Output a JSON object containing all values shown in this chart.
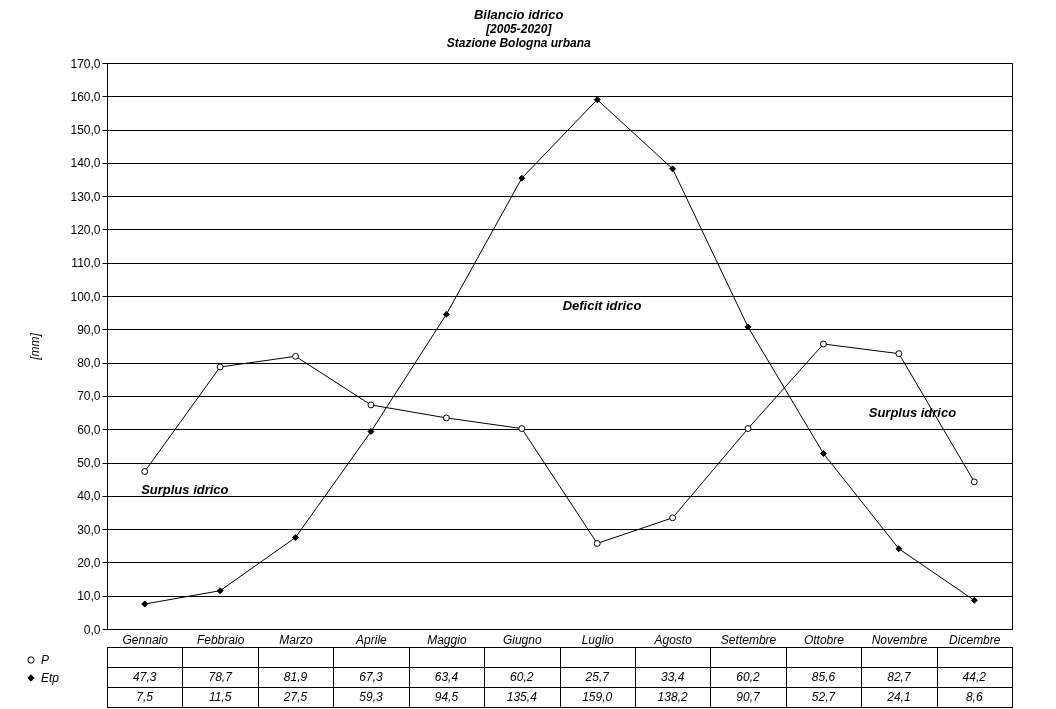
{
  "chart_data": {
    "type": "line",
    "title": "Bilancio idrico",
    "subtitle": "[2005-2020]\nStazione Bologna urbana",
    "ylabel": "[mm]",
    "categories": [
      "Gennaio",
      "Febbraio",
      "Marzo",
      "Aprile",
      "Maggio",
      "Giugno",
      "Luglio",
      "Agosto",
      "Settembre",
      "Ottobre",
      "Novembre",
      "Dicembre"
    ],
    "series": [
      {
        "name": "P",
        "color": "#000000",
        "marker": "circle",
        "values": [
          47.3,
          78.7,
          81.9,
          67.3,
          63.4,
          60.2,
          25.7,
          33.4,
          60.2,
          85.6,
          82.7,
          44.2
        ],
        "value_labels": [
          "47,3",
          "78,7",
          "81,9",
          "67,3",
          "63,4",
          "60,2",
          "25,7",
          "33,4",
          "60,2",
          "85,6",
          "82,7",
          "44,2"
        ]
      },
      {
        "name": "Etp",
        "color": "#000000",
        "marker": "diamond",
        "values": [
          7.5,
          11.5,
          27.5,
          59.3,
          94.5,
          135.4,
          159.0,
          138.2,
          90.7,
          52.7,
          24.1,
          8.6
        ],
        "value_labels": [
          "7,5",
          "11,5",
          "27,5",
          "59,3",
          "94,5",
          "135,4",
          "159,0",
          "138,2",
          "90,7",
          "52,7",
          "24,1",
          "8,6"
        ]
      }
    ],
    "ylim": [
      0,
      170
    ],
    "yticks": [
      {
        "value": 0,
        "label": "0,0"
      },
      {
        "value": 10,
        "label": "10,0"
      },
      {
        "value": 20,
        "label": "20,0"
      },
      {
        "value": 30,
        "label": "30,0"
      },
      {
        "value": 40,
        "label": "40,0"
      },
      {
        "value": 50,
        "label": "50,0"
      },
      {
        "value": 60,
        "label": "60,0"
      },
      {
        "value": 70,
        "label": "70,0"
      },
      {
        "value": 80,
        "label": "80,0"
      },
      {
        "value": 90,
        "label": "90,0"
      },
      {
        "value": 100,
        "label": "100,0"
      },
      {
        "value": 110,
        "label": "110,0"
      },
      {
        "value": 120,
        "label": "120,0"
      },
      {
        "value": 130,
        "label": "130,0"
      },
      {
        "value": 140,
        "label": "140,0"
      },
      {
        "value": 150,
        "label": "150,0"
      },
      {
        "value": 160,
        "label": "160,0"
      },
      {
        "value": 170,
        "label": "170,0"
      }
    ],
    "grid": "y",
    "legend": "bottom left",
    "annotations": [
      "Surplus idrico",
      "Deficit idrico",
      "Surplus idrico"
    ]
  }
}
